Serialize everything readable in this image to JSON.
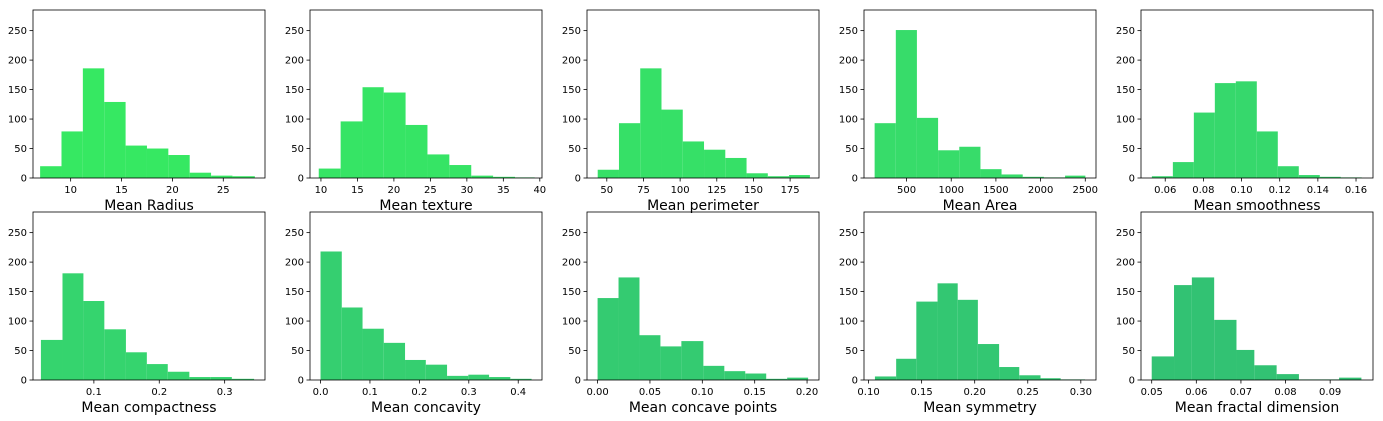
{
  "chart_data": [
    {
      "type": "bar",
      "xlabel": "Mean Radius",
      "color": "#36e862",
      "xlim": [
        6.3,
        29.1
      ],
      "ylim": [
        0,
        285
      ],
      "bin_edges": [
        7.0,
        9.1,
        11.2,
        13.3,
        15.4,
        17.5,
        19.6,
        21.7,
        23.8,
        25.9,
        28.1
      ],
      "values": [
        20,
        79,
        186,
        129,
        55,
        50,
        39,
        9,
        4,
        3
      ],
      "xticks": [
        10,
        15,
        20,
        25
      ],
      "yticks": [
        0,
        50,
        100,
        150,
        200,
        250
      ]
    },
    {
      "type": "bar",
      "xlabel": "Mean texture",
      "color": "#36e465",
      "xlim": [
        8.5,
        40.3
      ],
      "ylim": [
        0,
        285
      ],
      "bin_edges": [
        9.7,
        12.7,
        15.7,
        18.6,
        21.6,
        24.6,
        27.6,
        30.6,
        33.6,
        36.6,
        39.3
      ],
      "values": [
        16,
        96,
        154,
        145,
        90,
        40,
        22,
        4,
        2,
        1
      ],
      "xticks": [
        10,
        15,
        20,
        25,
        30,
        35,
        40
      ],
      "yticks": [
        0,
        50,
        100,
        150,
        200,
        250
      ]
    },
    {
      "type": "bar",
      "xlabel": "Mean perimeter",
      "color": "#36e067",
      "xlim": [
        36.5,
        194.7
      ],
      "ylim": [
        0,
        285
      ],
      "bin_edges": [
        43.8,
        58.3,
        72.8,
        87.3,
        101.8,
        116.3,
        130.8,
        145.3,
        159.8,
        174.3,
        188.5
      ],
      "values": [
        14,
        93,
        186,
        116,
        62,
        48,
        34,
        8,
        3,
        5
      ],
      "xticks": [
        50,
        75,
        100,
        125,
        150,
        175
      ],
      "yticks": [
        0,
        50,
        100,
        150,
        200,
        250
      ]
    },
    {
      "type": "bar",
      "xlabel": "Mean Area",
      "color": "#37dc6a",
      "xlim": [
        24,
        2620
      ],
      "ylim": [
        0,
        285
      ],
      "bin_edges": [
        143,
        380,
        616,
        853,
        1090,
        1327,
        1563,
        1800,
        2037,
        2274,
        2501
      ],
      "values": [
        93,
        251,
        102,
        47,
        53,
        15,
        6,
        2,
        1,
        4
      ],
      "xticks": [
        500,
        1000,
        1500,
        2000,
        2500
      ],
      "yticks": [
        0,
        50,
        100,
        150,
        200,
        250
      ]
    },
    {
      "type": "bar",
      "xlabel": "Mean smoothness",
      "color": "#36d86c",
      "xlim": [
        0.0473,
        0.1689
      ],
      "ylim": [
        0,
        285
      ],
      "bin_edges": [
        0.053,
        0.064,
        0.075,
        0.086,
        0.097,
        0.108,
        0.119,
        0.13,
        0.141,
        0.152,
        0.163
      ],
      "values": [
        3,
        27,
        111,
        161,
        164,
        79,
        20,
        5,
        2,
        1
      ],
      "xticks": [
        0.06,
        0.08,
        0.1,
        0.12,
        0.14,
        0.16
      ],
      "yticks": [
        0,
        50,
        100,
        150,
        200,
        250
      ]
    },
    {
      "type": "bar",
      "xlabel": "Mean compactness",
      "color": "#35d46e",
      "xlim": [
        0.0069,
        0.3617
      ],
      "ylim": [
        0,
        285
      ],
      "bin_edges": [
        0.019,
        0.052,
        0.084,
        0.116,
        0.149,
        0.181,
        0.213,
        0.246,
        0.278,
        0.311,
        0.345
      ],
      "values": [
        68,
        181,
        134,
        86,
        47,
        27,
        14,
        5,
        5,
        2
      ],
      "xticks": [
        0.1,
        0.2,
        0.3
      ],
      "yticks": [
        0,
        50,
        100,
        150,
        200,
        250
      ]
    },
    {
      "type": "bar",
      "xlabel": "Mean concavity",
      "color": "#35cf70",
      "xlim": [
        -0.0213,
        0.4481
      ],
      "ylim": [
        0,
        285
      ],
      "bin_edges": [
        0.0,
        0.043,
        0.085,
        0.128,
        0.171,
        0.213,
        0.256,
        0.299,
        0.341,
        0.384,
        0.427
      ],
      "values": [
        218,
        123,
        87,
        63,
        34,
        26,
        7,
        9,
        5,
        2
      ],
      "xticks": [
        0.0,
        0.1,
        0.2,
        0.3,
        0.4
      ],
      "yticks": [
        0,
        50,
        100,
        150,
        200,
        250
      ]
    },
    {
      "type": "bar",
      "xlabel": "Mean concave points",
      "color": "#34cb71",
      "xlim": [
        -0.0101,
        0.2114
      ],
      "ylim": [
        0,
        285
      ],
      "bin_edges": [
        0.0,
        0.02,
        0.04,
        0.06,
        0.08,
        0.101,
        0.121,
        0.141,
        0.161,
        0.181,
        0.201
      ],
      "values": [
        139,
        174,
        76,
        57,
        66,
        24,
        15,
        11,
        2,
        4
      ],
      "xticks": [
        0.0,
        0.05,
        0.1,
        0.15,
        0.2
      ],
      "yticks": [
        0,
        50,
        100,
        150,
        200,
        250
      ]
    },
    {
      "type": "bar",
      "xlabel": "Mean symmetry",
      "color": "#33c772",
      "xlim": [
        0.0957,
        0.3143
      ],
      "ylim": [
        0,
        285
      ],
      "bin_edges": [
        0.106,
        0.126,
        0.145,
        0.165,
        0.184,
        0.203,
        0.223,
        0.242,
        0.262,
        0.281,
        0.304
      ],
      "values": [
        6,
        36,
        133,
        164,
        136,
        61,
        22,
        8,
        3,
        1
      ],
      "xticks": [
        0.1,
        0.15,
        0.2,
        0.25,
        0.3
      ],
      "yticks": [
        0,
        50,
        100,
        150,
        200,
        250
      ]
    },
    {
      "type": "bar",
      "xlabel": "Mean fractal dimension",
      "color": "#32c273",
      "xlim": [
        0.0476,
        0.0996
      ],
      "ylim": [
        0,
        285
      ],
      "bin_edges": [
        0.05,
        0.055,
        0.059,
        0.064,
        0.069,
        0.073,
        0.078,
        0.083,
        0.088,
        0.092,
        0.097
      ],
      "values": [
        40,
        161,
        174,
        102,
        51,
        25,
        10,
        1,
        1,
        4
      ],
      "xticks": [
        0.05,
        0.06,
        0.07,
        0.08,
        0.09
      ],
      "yticks": [
        0,
        50,
        100,
        150,
        200,
        250
      ]
    }
  ]
}
